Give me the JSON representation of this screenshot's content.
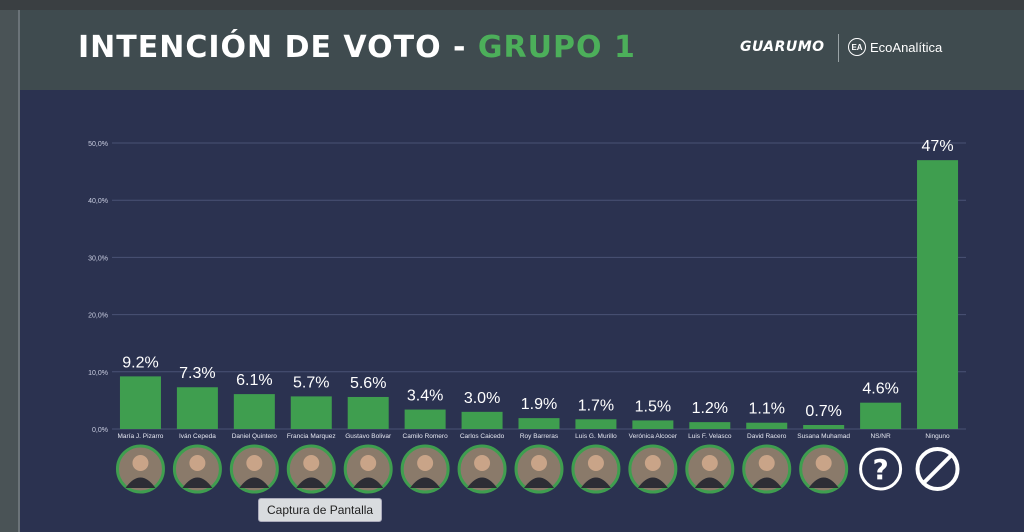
{
  "header": {
    "title_main": "INTENCIÓN DE VOTO - ",
    "title_accent": "GRUPO 1",
    "logo_guarumo": "GUARUMO",
    "logo_eco": "EcoAnalítica",
    "eco_mark": "EA"
  },
  "tooltip": "Captura de Pantalla",
  "colors": {
    "bar": "#3f9e4f",
    "background": "#2b3250",
    "grid": "#4a5275",
    "avatar_border": "#3f9e4f"
  },
  "chart_data": {
    "type": "bar",
    "title": "",
    "xlabel": "",
    "ylabel": "",
    "ylim": [
      0,
      50
    ],
    "grid": true,
    "yticks": [
      "0,0%",
      "10,0%",
      "20,0%",
      "30,0%",
      "40,0%",
      "50,0%"
    ],
    "categories": [
      "María J. Pizarro",
      "Iván Cepeda",
      "Daniel Quintero",
      "Francia Marquez",
      "Gustavo Bolivar",
      "Camilo Romero",
      "Carlos Caicedo",
      "Roy Barreras",
      "Luis G. Murillo",
      "Verónica Alcocer",
      "Luis F. Velasco",
      "David Racero",
      "Susana Muhamad",
      "NS/NR",
      "Ninguno"
    ],
    "values": [
      9.2,
      7.3,
      6.1,
      5.7,
      5.6,
      3.4,
      3.0,
      1.9,
      1.7,
      1.5,
      1.2,
      1.1,
      0.7,
      4.6,
      47
    ],
    "data_labels": [
      "9.2%",
      "7.3%",
      "6.1%",
      "5.7%",
      "5.6%",
      "3.4%",
      "3.0%",
      "1.9%",
      "1.7%",
      "1.5%",
      "1.2%",
      "1.1%",
      "0.7%",
      "4.6%",
      "47%"
    ],
    "icons": [
      "avatar-icon",
      "avatar-icon",
      "avatar-icon",
      "avatar-icon",
      "avatar-icon",
      "avatar-icon",
      "avatar-icon",
      "avatar-icon",
      "avatar-icon",
      "avatar-icon",
      "avatar-icon",
      "avatar-icon",
      "avatar-icon",
      "question-mark-icon",
      "prohibited-icon"
    ]
  }
}
